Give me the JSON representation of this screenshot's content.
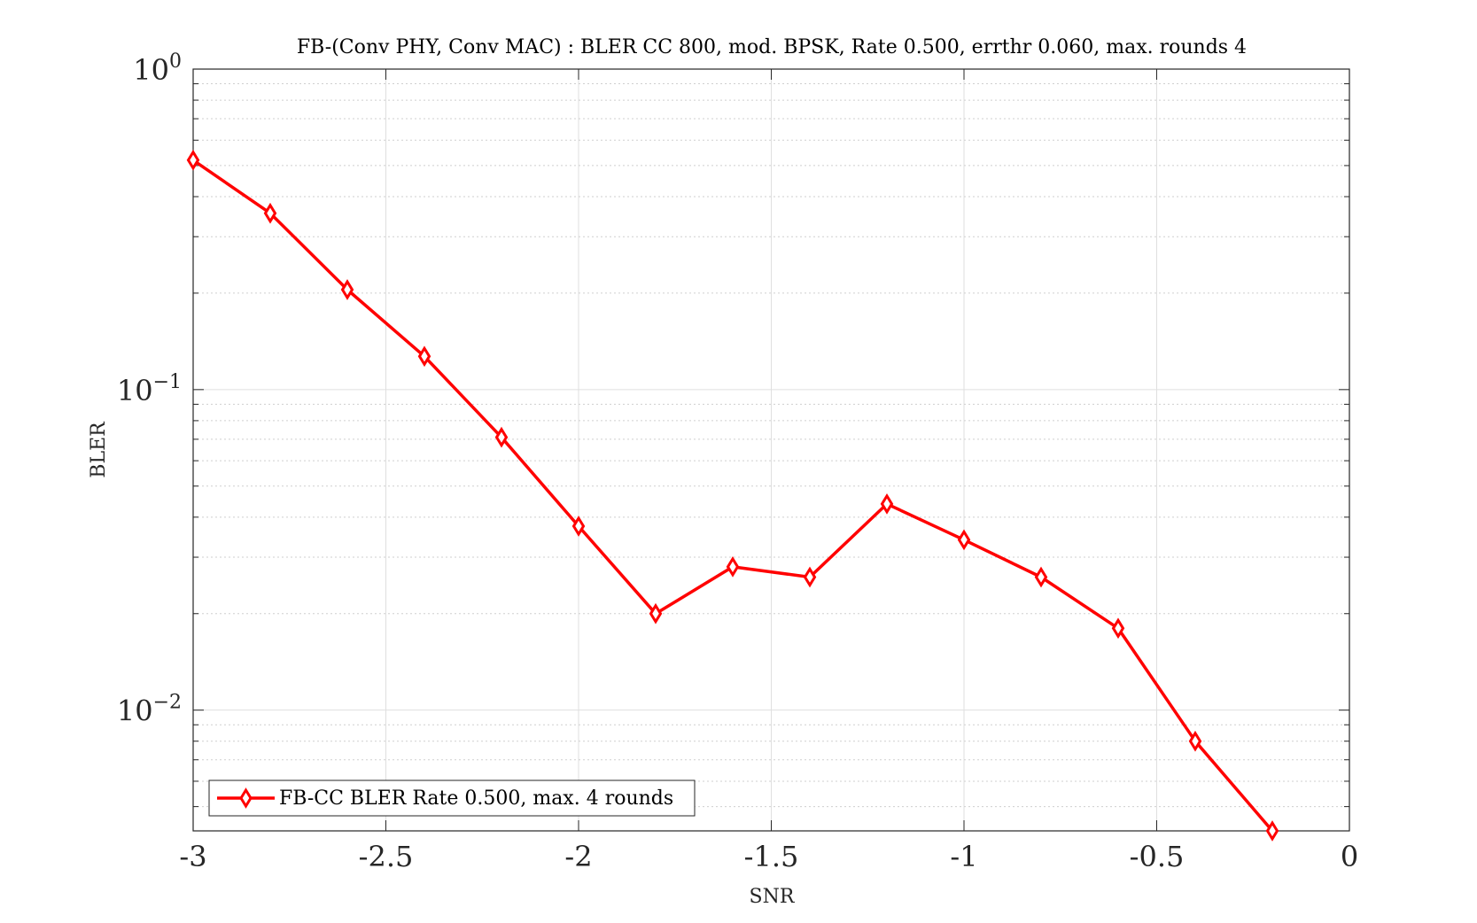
{
  "chart_data": {
    "type": "line",
    "title": "FB-(Conv PHY, Conv MAC) : BLER CC 800, mod. BPSK, Rate 0.500, errthr 0.060, max. rounds 4",
    "xlabel": "SNR",
    "ylabel": "BLER",
    "xlim": [
      -3,
      0
    ],
    "ylim": [
      0.0042,
      1
    ],
    "yscale": "log",
    "grid": true,
    "legend_position": "bottom-left",
    "x_ticks": [
      {
        "value": -3,
        "label": "-3"
      },
      {
        "value": -2.5,
        "label": "-2.5"
      },
      {
        "value": -2,
        "label": "-2"
      },
      {
        "value": -1.5,
        "label": "-1.5"
      },
      {
        "value": -1,
        "label": "-1"
      },
      {
        "value": -0.5,
        "label": "-0.5"
      },
      {
        "value": 0,
        "label": "0"
      }
    ],
    "y_ticks": [
      {
        "value": 1,
        "base": "10",
        "exp": "0"
      },
      {
        "value": 0.1,
        "base": "10",
        "exp": "−1"
      },
      {
        "value": 0.01,
        "base": "10",
        "exp": "−2"
      }
    ],
    "series": [
      {
        "name": "FB-CC BLER Rate 0.500, max. 4 rounds",
        "color": "#ff0000",
        "marker": "diamond",
        "x": [
          -3.0,
          -2.8,
          -2.6,
          -2.4,
          -2.2,
          -2.0,
          -1.8,
          -1.6,
          -1.4,
          -1.2,
          -1.0,
          -0.8,
          -0.6,
          -0.4,
          -0.2
        ],
        "y": [
          0.52,
          0.355,
          0.205,
          0.127,
          0.071,
          0.0375,
          0.02,
          0.028,
          0.026,
          0.044,
          0.034,
          0.026,
          0.018,
          0.008,
          0.0042
        ]
      }
    ]
  }
}
